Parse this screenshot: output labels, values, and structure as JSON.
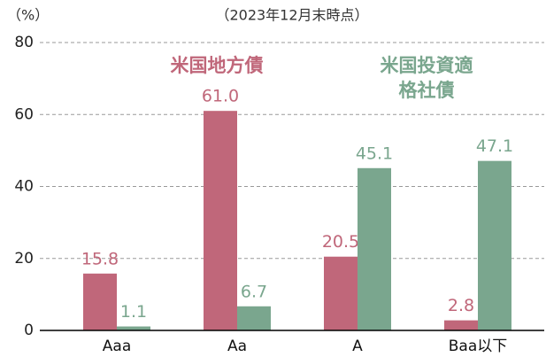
{
  "chart_data": {
    "type": "bar",
    "subtitle": "（2023年12月末時点）",
    "y_axis_label": "（%）",
    "categories": [
      "Aaa",
      "Aa",
      "A",
      "Baa以下"
    ],
    "series": [
      {
        "name": "米国地方債",
        "color": "#c0677a",
        "values": [
          15.8,
          61,
          20.5,
          2.8
        ],
        "value_labels": [
          "15.8",
          "61.0",
          "20.5",
          "2.8"
        ]
      },
      {
        "name": "米国投資適格社債",
        "color": "#7aa68e",
        "values": [
          1.1,
          6.7,
          45.1,
          47.1
        ],
        "value_labels": [
          "1.1",
          "6.7",
          "45.1",
          "47.1"
        ]
      }
    ],
    "ylim": [
      0,
      80
    ],
    "yticks": [
      0,
      20,
      40,
      60,
      80
    ],
    "grid": true
  }
}
